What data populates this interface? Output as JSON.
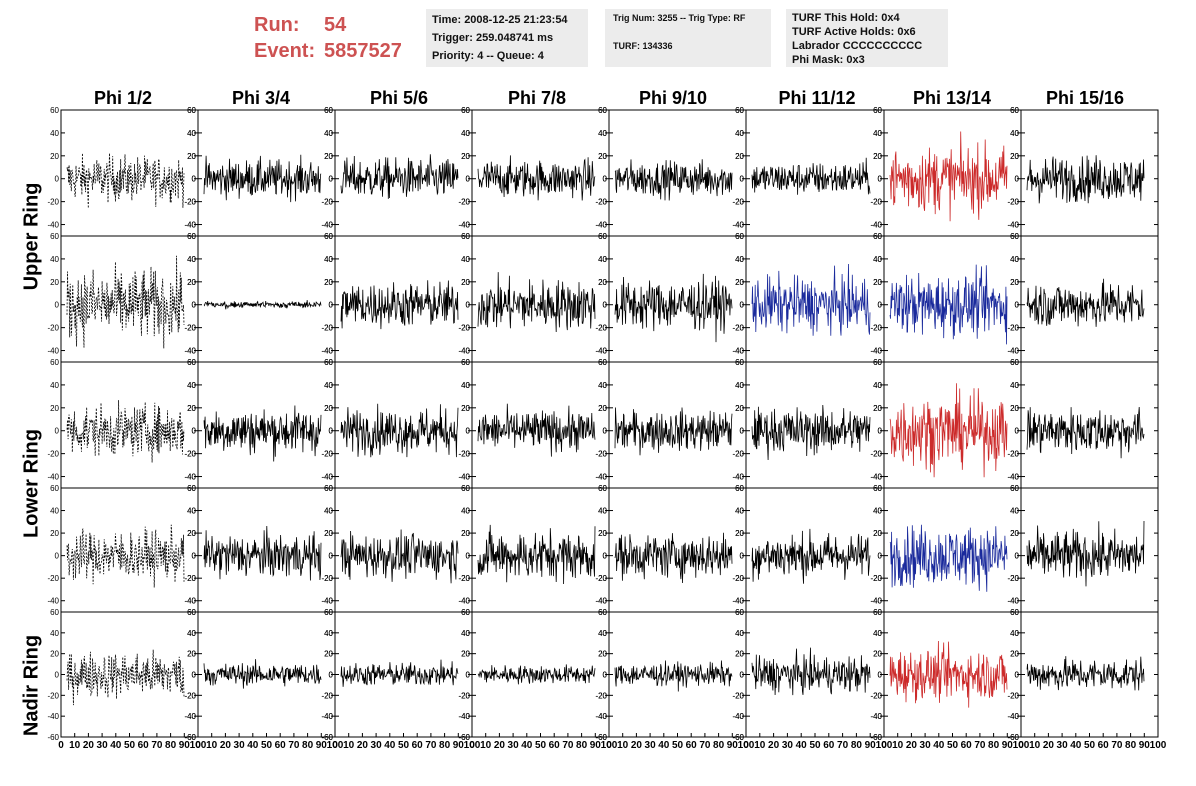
{
  "header": {
    "run_label": "Run:",
    "run_value": "54",
    "event_label": "Event:",
    "event_value": "5857527"
  },
  "info": {
    "time": "Time: 2008-12-25 21:23:54",
    "trigger": "Trigger: 259.048741 ms",
    "priority": "Priority: 4 -- Queue: 4",
    "trig_num": "Trig Num: 3255 -- Trig Type: RF",
    "turf": "TURF: 134336",
    "turf_this_hold": "TURF This Hold: 0x4",
    "turf_active_holds": "TURF Active Holds: 0x6",
    "labrador": "Labrador CCCCCCCCCC",
    "phi_mask": "Phi Mask: 0x3"
  },
  "columns": [
    "Phi 1/2",
    "Phi 3/4",
    "Phi 5/6",
    "Phi 7/8",
    "Phi 9/10",
    "Phi 11/12",
    "Phi 13/14",
    "Phi 15/16"
  ],
  "rings": [
    "Upper Ring",
    "Lower Ring",
    "Nadir Ring"
  ],
  "colors": {
    "run_text": "#cd5252",
    "trace_default": "#000000",
    "trace_red": "#cc2a2a",
    "trace_blue": "#1a2a9c",
    "info_box": "#ececec"
  },
  "chart_data": {
    "type": "line",
    "title": "",
    "description_rows": [
      "upper-ring-top",
      "upper-ring-bottom",
      "lower-ring-top",
      "lower-ring-bottom",
      "nadir-ring"
    ],
    "y_ticks": [
      "60",
      "40",
      "20",
      "0",
      "-20",
      "-40"
    ],
    "y_ticks_nadir": [
      "60",
      "40",
      "20",
      "0",
      "-20",
      "-40",
      "-60"
    ],
    "x_ticks": [
      "0",
      "10",
      "20",
      "30",
      "40",
      "50",
      "60",
      "70",
      "80",
      "90",
      "100"
    ],
    "xlim": [
      0,
      100
    ],
    "ylim": [
      -50,
      60
    ],
    "ylim_nadir": [
      -60,
      60
    ],
    "x_label_row": [
      "0 1020304050607080901",
      "0 1020304050607080901",
      "0 1020304050607080901",
      "0 1020304050607080901",
      "0 1020304050607080901",
      "0 1020304050607080901",
      "0 1020304050607080901",
      "0 1020304050607080900"
    ],
    "panel_styles": [
      [
        "dashed",
        "solid",
        "solid",
        "solid",
        "solid",
        "solid",
        "red",
        "solid"
      ],
      [
        "dashed",
        "flat",
        "solid",
        "solid",
        "solid",
        "blue",
        "blue",
        "solid"
      ],
      [
        "dashed",
        "solid",
        "solid",
        "solid",
        "solid",
        "solid",
        "red",
        "solid"
      ],
      [
        "dashed",
        "solid",
        "solid",
        "solid",
        "solid",
        "solid",
        "blue",
        "solid"
      ],
      [
        "dashed",
        "solid",
        "solid",
        "solid",
        "solid",
        "solid",
        "red",
        "solid"
      ]
    ],
    "panel_amplitudes": [
      [
        18,
        15,
        16,
        15,
        14,
        13,
        26,
        18
      ],
      [
        28,
        3,
        18,
        20,
        20,
        22,
        24,
        18
      ],
      [
        20,
        18,
        18,
        16,
        16,
        18,
        28,
        18
      ],
      [
        20,
        18,
        18,
        20,
        18,
        18,
        24,
        20
      ],
      [
        20,
        10,
        10,
        8,
        10,
        16,
        22,
        14
      ]
    ]
  }
}
